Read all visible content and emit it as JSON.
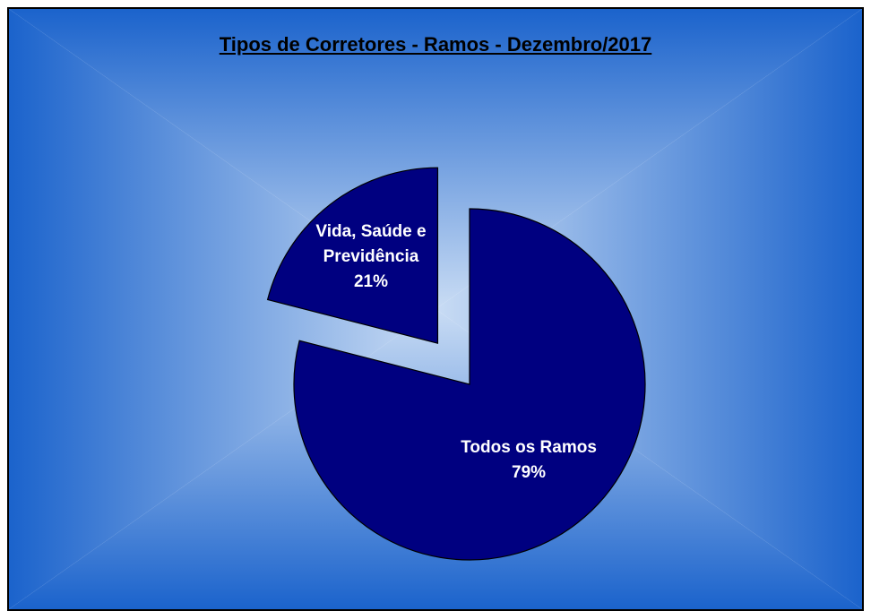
{
  "chart_data": {
    "type": "pie",
    "title": "Tipos de Corretores - Ramos - Dezembro/2017",
    "slices": [
      {
        "label": "Todos os Ramos",
        "value": 79,
        "percent_label": "79%",
        "color": "#000080"
      },
      {
        "label": "Vida, Saúde e Previdência",
        "label_lines": [
          "Vida, Saúde e",
          "Previdência"
        ],
        "value": 21,
        "percent_label": "21%",
        "color": "#000080",
        "exploded": true
      }
    ],
    "legend": "none",
    "start": "12 o'clock, clockwise"
  },
  "style": {
    "background_outer": "#1B63CC",
    "background_center": "#C9DCF4",
    "slice_border": "#000000",
    "label_color": "#ffffff"
  }
}
